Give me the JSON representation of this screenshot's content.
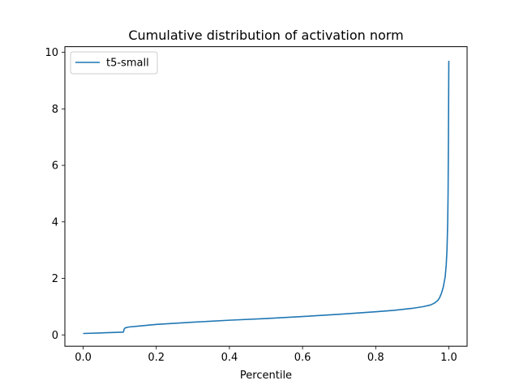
{
  "chart_data": {
    "type": "line",
    "title": "Cumulative distribution of activation norm",
    "xlabel": "Percentile",
    "ylabel": "",
    "xlim": [
      -0.05,
      1.05
    ],
    "ylim": [
      -0.4,
      10.2
    ],
    "xticks": [
      {
        "value": 0.0,
        "label": "0.0"
      },
      {
        "value": 0.2,
        "label": "0.2"
      },
      {
        "value": 0.4,
        "label": "0.4"
      },
      {
        "value": 0.6,
        "label": "0.6"
      },
      {
        "value": 0.8,
        "label": "0.8"
      },
      {
        "value": 1.0,
        "label": "1.0"
      }
    ],
    "yticks": [
      {
        "value": 0,
        "label": "0"
      },
      {
        "value": 2,
        "label": "2"
      },
      {
        "value": 4,
        "label": "4"
      },
      {
        "value": 6,
        "label": "6"
      },
      {
        "value": 8,
        "label": "8"
      },
      {
        "value": 10,
        "label": "10"
      }
    ],
    "grid": false,
    "legend_position": "top-left",
    "series": [
      {
        "name": "t5-small",
        "color": "#1f77b4",
        "x": [
          0.0,
          0.05,
          0.11,
          0.112,
          0.115,
          0.125,
          0.15,
          0.2,
          0.3,
          0.4,
          0.5,
          0.6,
          0.7,
          0.8,
          0.85,
          0.9,
          0.93,
          0.95,
          0.96,
          0.97,
          0.975,
          0.98,
          0.985,
          0.99,
          0.993,
          0.995,
          0.997,
          0.998,
          0.999,
          1.0
        ],
        "y": [
          0.05,
          0.07,
          0.1,
          0.2,
          0.25,
          0.28,
          0.31,
          0.37,
          0.45,
          0.52,
          0.58,
          0.65,
          0.73,
          0.82,
          0.87,
          0.94,
          1.0,
          1.06,
          1.12,
          1.22,
          1.32,
          1.48,
          1.7,
          2.05,
          2.5,
          3.0,
          4.0,
          5.0,
          7.0,
          9.7
        ]
      }
    ]
  }
}
